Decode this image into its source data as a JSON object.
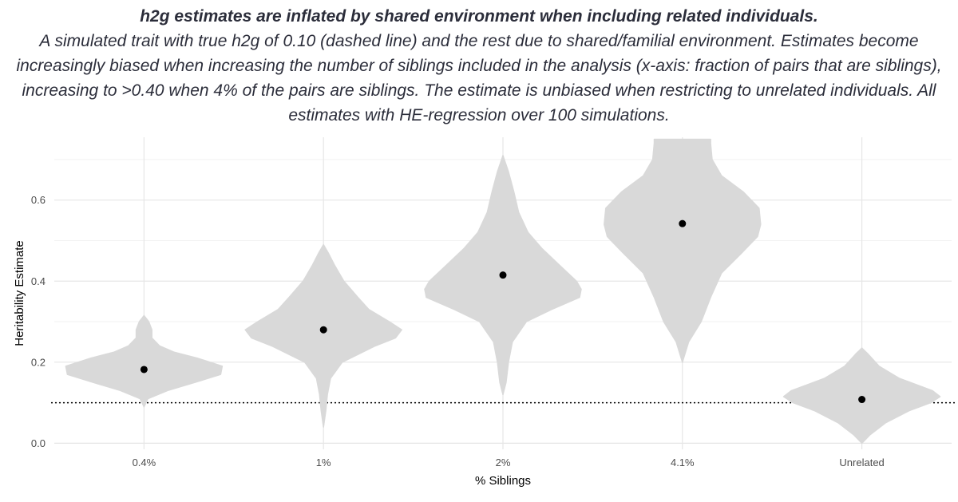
{
  "chart_data": {
    "type": "violin",
    "title": "h2g estimates are inflated by shared environment when including related individuals.",
    "subtitle": "A simulated trait with true h2g of 0.10 (dashed line) and the rest due to shared/familial environment. Estimates become increasingly biased when increasing the number of siblings included in the analysis (x-axis: fraction of pairs that are siblings), increasing to >0.40 when 4% of the pairs are siblings. The estimate is unbiased when restricting to unrelated individuals. All estimates with HE-regression over 100 simulations.",
    "xlabel": "% Siblings",
    "ylabel": "Heritability Estimate",
    "ylim": [
      -0.015,
      0.755
    ],
    "yticks": [
      0.0,
      0.2,
      0.4,
      0.6
    ],
    "ytick_labels": [
      "0.0",
      "0.2",
      "0.4",
      "0.6"
    ],
    "reference_line": 0.1,
    "categories": [
      "0.4%",
      "1%",
      "2%",
      "4.1%",
      "Unrelated"
    ],
    "means": [
      0.182,
      0.28,
      0.415,
      0.542,
      0.108
    ],
    "violin_profiles": [
      [
        [
          0.09,
          0.0
        ],
        [
          0.11,
          0.05
        ],
        [
          0.13,
          0.3
        ],
        [
          0.15,
          0.65
        ],
        [
          0.17,
          0.98
        ],
        [
          0.19,
          1.0
        ],
        [
          0.21,
          0.68
        ],
        [
          0.225,
          0.38
        ],
        [
          0.24,
          0.2
        ],
        [
          0.26,
          0.1
        ],
        [
          0.28,
          0.1
        ],
        [
          0.3,
          0.06
        ],
        [
          0.315,
          0.0
        ]
      ],
      [
        [
          0.04,
          0.0
        ],
        [
          0.08,
          0.03
        ],
        [
          0.12,
          0.05
        ],
        [
          0.16,
          0.09
        ],
        [
          0.2,
          0.24
        ],
        [
          0.24,
          0.66
        ],
        [
          0.26,
          0.92
        ],
        [
          0.28,
          1.0
        ],
        [
          0.3,
          0.84
        ],
        [
          0.33,
          0.58
        ],
        [
          0.36,
          0.44
        ],
        [
          0.4,
          0.26
        ],
        [
          0.44,
          0.14
        ],
        [
          0.47,
          0.06
        ],
        [
          0.49,
          0.0
        ]
      ],
      [
        [
          0.12,
          0.0
        ],
        [
          0.15,
          0.04
        ],
        [
          0.2,
          0.07
        ],
        [
          0.25,
          0.12
        ],
        [
          0.3,
          0.3
        ],
        [
          0.33,
          0.62
        ],
        [
          0.36,
          0.98
        ],
        [
          0.38,
          1.0
        ],
        [
          0.4,
          0.94
        ],
        [
          0.44,
          0.72
        ],
        [
          0.48,
          0.5
        ],
        [
          0.52,
          0.32
        ],
        [
          0.57,
          0.2
        ],
        [
          0.62,
          0.14
        ],
        [
          0.67,
          0.07
        ],
        [
          0.71,
          0.0
        ]
      ],
      [
        [
          0.2,
          0.0
        ],
        [
          0.25,
          0.08
        ],
        [
          0.3,
          0.24
        ],
        [
          0.36,
          0.36
        ],
        [
          0.42,
          0.5
        ],
        [
          0.47,
          0.76
        ],
        [
          0.51,
          0.96
        ],
        [
          0.54,
          1.0
        ],
        [
          0.58,
          0.98
        ],
        [
          0.62,
          0.78
        ],
        [
          0.66,
          0.5
        ],
        [
          0.7,
          0.38
        ],
        [
          0.74,
          0.36
        ],
        [
          0.75,
          0.36
        ]
      ],
      [
        [
          0.0,
          0.0
        ],
        [
          0.02,
          0.1
        ],
        [
          0.05,
          0.3
        ],
        [
          0.08,
          0.6
        ],
        [
          0.1,
          0.88
        ],
        [
          0.115,
          1.0
        ],
        [
          0.13,
          0.9
        ],
        [
          0.16,
          0.48
        ],
        [
          0.19,
          0.22
        ],
        [
          0.22,
          0.08
        ],
        [
          0.235,
          0.0
        ]
      ]
    ],
    "violin_color": "#d9d9d9",
    "point_color": "#000000",
    "grid": true,
    "legend": "none"
  }
}
